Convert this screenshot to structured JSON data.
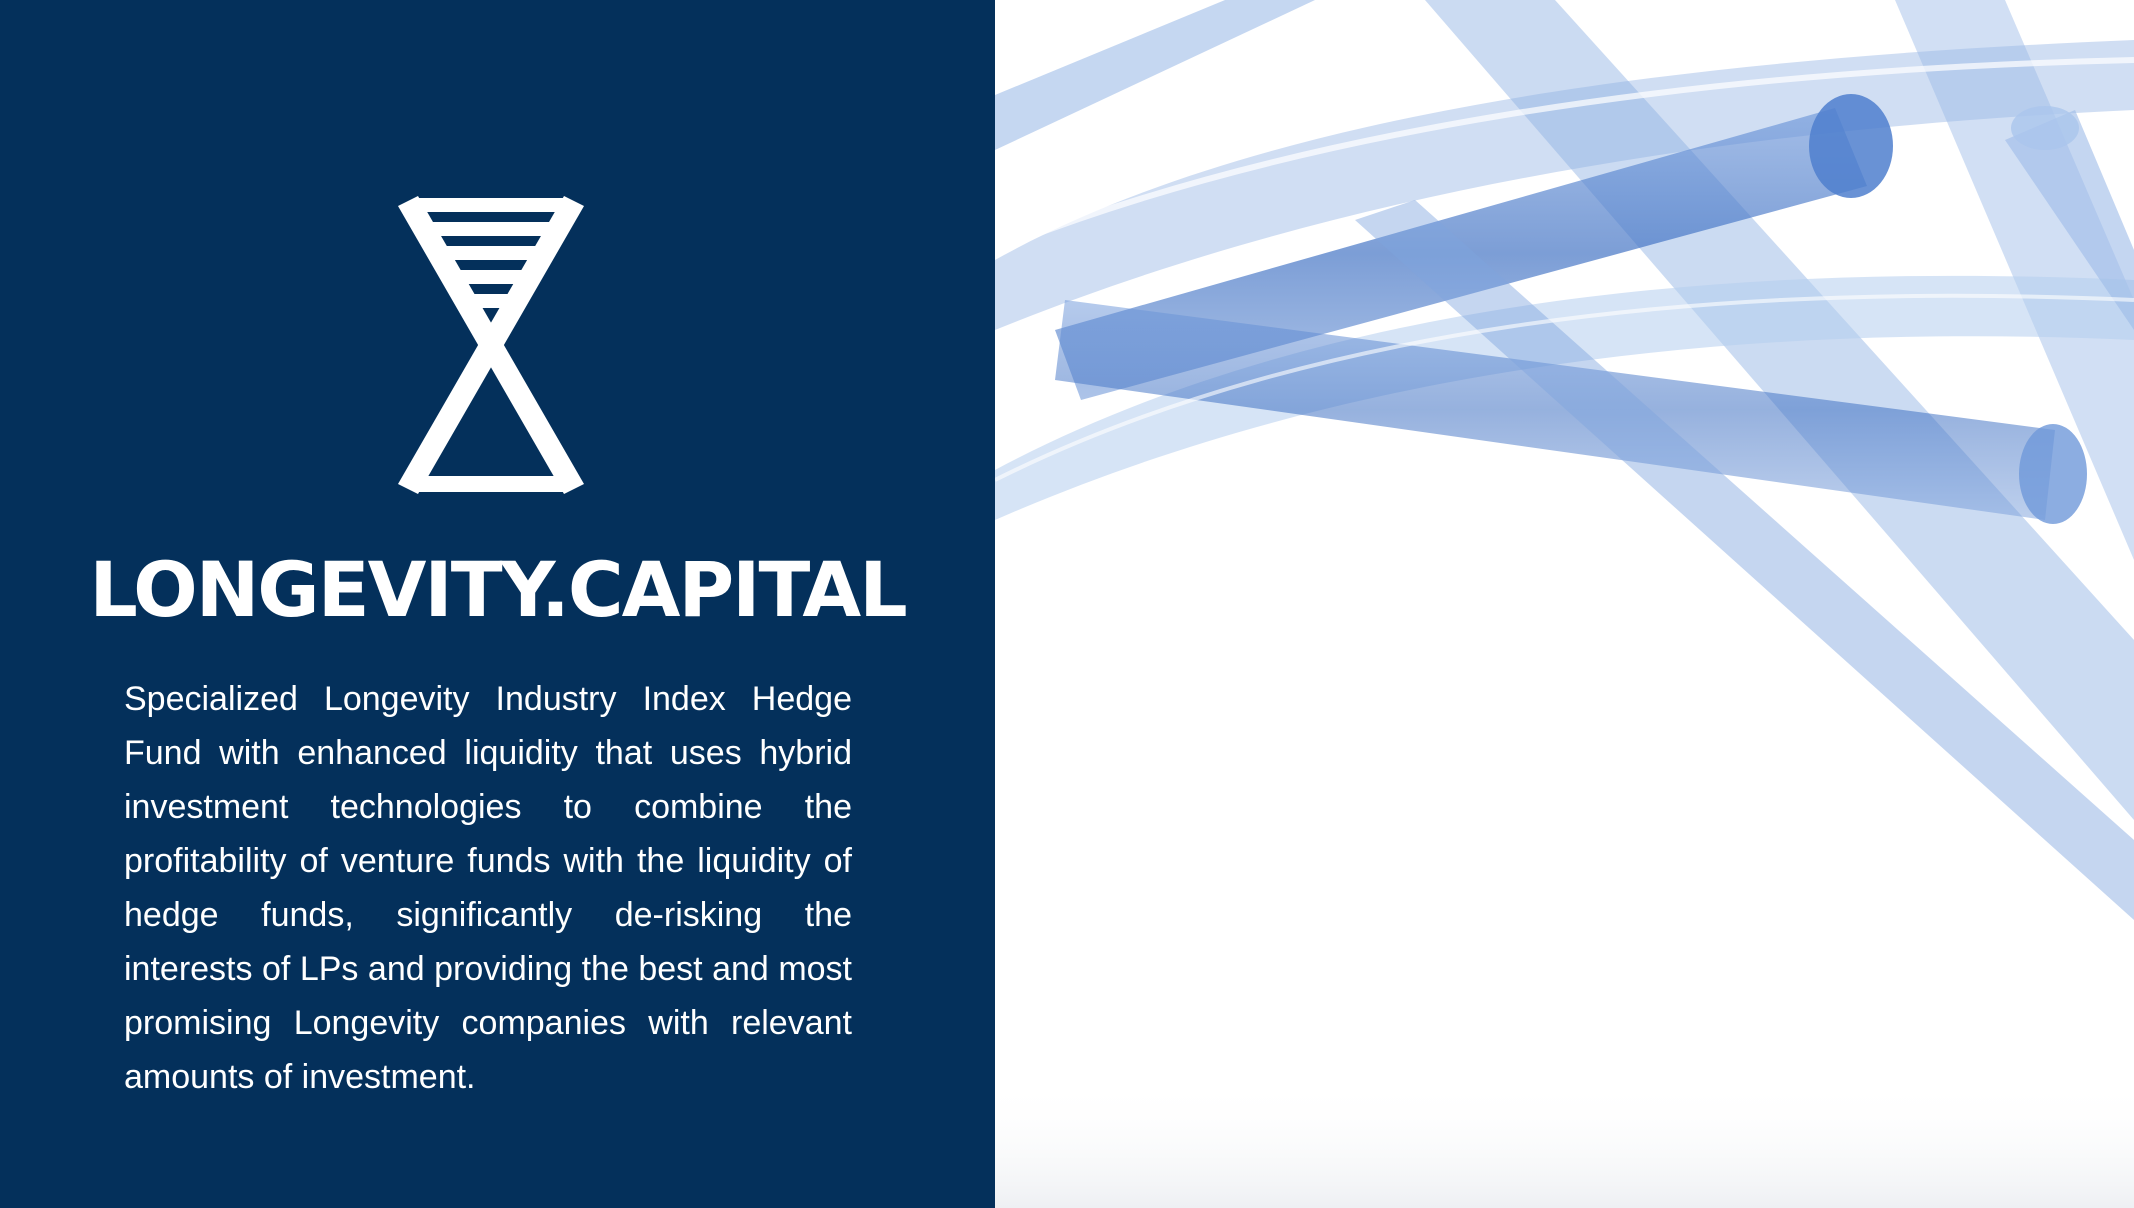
{
  "brand": {
    "logo_icon": "hourglass-dna-icon",
    "title": "LONGEVITY.CAPITAL",
    "description": "Specialized Longevity Industry Index Hedge Fund with enhanced liquidity that uses hybrid investment technologies to combine the profitability of venture funds with the liquidity of hedge funds, significantly de-risking the interests of LPs and providing the best and most promising Longevity companies with relevant amounts of investment."
  },
  "colors": {
    "panel_background": "#04305b",
    "text": "#ffffff",
    "tube_blue": "#4a7fd0"
  },
  "visual": {
    "icon": "transparent-blue-tubes-image"
  }
}
